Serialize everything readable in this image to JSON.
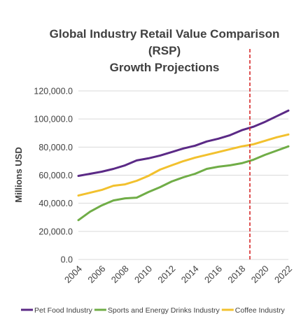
{
  "chart_data": {
    "type": "line",
    "title_lines": [
      "Global Industry Retail Value Comparison",
      "(RSP)",
      "Growth Projections"
    ],
    "xlabel": "",
    "ylabel": "Millions USD",
    "ylim": [
      0,
      120000
    ],
    "y_ticks": [
      "0.0",
      "20,000.0",
      "40,000.0",
      "60,000.0",
      "80,000.0",
      "100,000.0",
      "120,000.0"
    ],
    "x_ticks": [
      "2004",
      "2006",
      "2008",
      "2010",
      "2012",
      "2014",
      "2016",
      "2018",
      "2020",
      "2022"
    ],
    "x": [
      2004,
      2005,
      2006,
      2007,
      2008,
      2009,
      2010,
      2011,
      2012,
      2013,
      2014,
      2015,
      2016,
      2017,
      2018,
      2019,
      2020,
      2021,
      2022
    ],
    "grid": true,
    "legend_position": "bottom",
    "reference_line": {
      "x": 2018.7,
      "color": "#d62728",
      "style": "dashed"
    },
    "series": [
      {
        "name": "Pet Food Industry",
        "color": "#5b2a86",
        "values": [
          59500,
          61000,
          62500,
          64500,
          67000,
          70500,
          72000,
          74000,
          76500,
          79000,
          81000,
          84000,
          86000,
          88500,
          92000,
          94500,
          98000,
          102000,
          106000
        ]
      },
      {
        "name": "Sports and Energy Drinks Industry",
        "color": "#70ad47",
        "values": [
          28000,
          34000,
          38500,
          42000,
          43500,
          44000,
          48000,
          51500,
          55500,
          58500,
          61000,
          64500,
          66000,
          67000,
          68500,
          71000,
          74500,
          77500,
          80500
        ]
      },
      {
        "name": "Coffee Industry",
        "color": "#f2c12e",
        "values": [
          45500,
          47500,
          49500,
          52500,
          53500,
          56000,
          59500,
          64000,
          67000,
          70000,
          72500,
          74500,
          76500,
          78500,
          80500,
          82000,
          84500,
          87000,
          89000
        ]
      }
    ]
  }
}
